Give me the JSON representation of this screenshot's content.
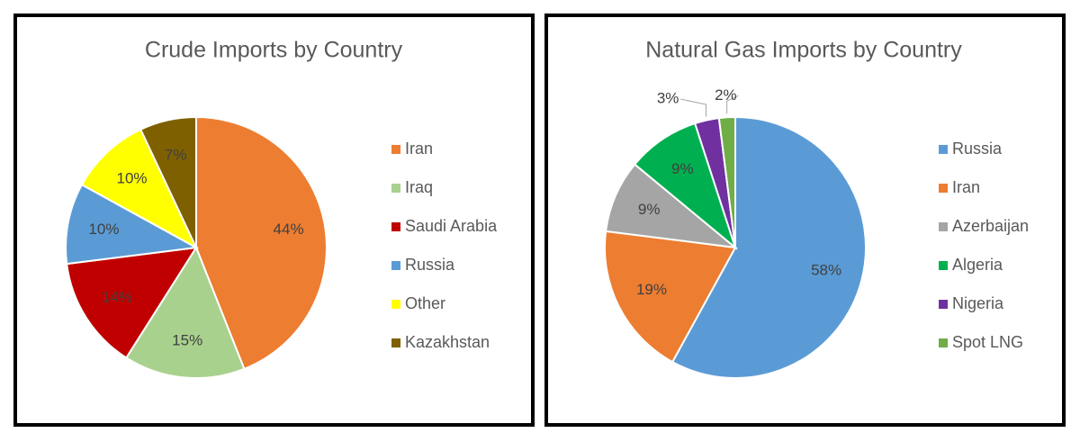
{
  "chart_data": [
    {
      "type": "pie",
      "title": "Crude Imports by Country",
      "categories": [
        "Iran",
        "Iraq",
        "Saudi Arabia",
        "Russia",
        "Other",
        "Kazakhstan"
      ],
      "values": [
        44,
        15,
        14,
        10,
        10,
        7
      ],
      "value_labels": [
        "44%",
        "15%",
        "14%",
        "10%",
        "10%",
        "7%"
      ],
      "colors": [
        "#ed7d31",
        "#a9d18e",
        "#c00000",
        "#5b9bd5",
        "#ffff00",
        "#7f6000"
      ],
      "legend": "right"
    },
    {
      "type": "pie",
      "title": "Natural Gas Imports by Country",
      "categories": [
        "Russia",
        "Iran",
        "Azerbaijan",
        "Algeria",
        "Nigeria",
        "Spot LNG"
      ],
      "values": [
        58,
        19,
        9,
        9,
        3,
        2
      ],
      "value_labels": [
        "58%",
        "19%",
        "9%",
        "9%",
        "3%",
        "2%"
      ],
      "colors": [
        "#5b9bd5",
        "#ed7d31",
        "#a5a5a5",
        "#00b050",
        "#7030a0",
        "#70ad47"
      ],
      "legend": "right"
    }
  ]
}
